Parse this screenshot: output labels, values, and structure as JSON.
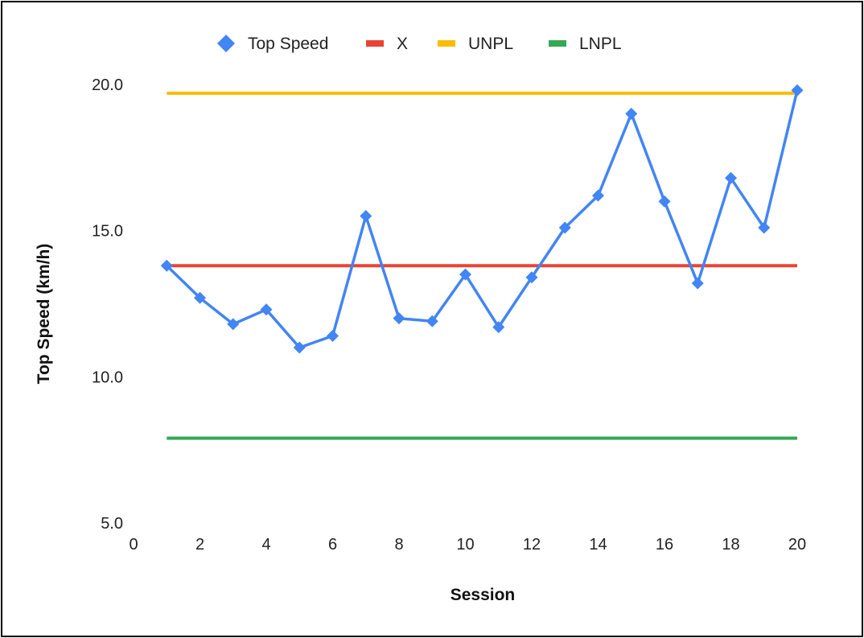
{
  "chart_data": {
    "type": "line",
    "title": "",
    "xlabel": "Session",
    "ylabel": "Top Speed (km/h)",
    "xlim": [
      0,
      20
    ],
    "ylim": [
      5,
      20
    ],
    "x_ticks": [
      "0",
      "2",
      "4",
      "6",
      "8",
      "10",
      "12",
      "14",
      "16",
      "18",
      "20"
    ],
    "y_ticks": [
      "5.0",
      "10.0",
      "15.0",
      "20.0"
    ],
    "grid": false,
    "legend_position": "top",
    "series": [
      {
        "name": "Top Speed",
        "color": "#4285F4",
        "marker": "diamond",
        "x": [
          1,
          2,
          3,
          4,
          5,
          6,
          7,
          8,
          9,
          10,
          11,
          12,
          13,
          14,
          15,
          16,
          17,
          18,
          19,
          20
        ],
        "values": [
          13.8,
          12.7,
          11.8,
          12.3,
          11.0,
          11.4,
          15.5,
          12.0,
          11.9,
          13.5,
          11.7,
          13.4,
          15.1,
          16.2,
          19.0,
          16.0,
          13.2,
          16.8,
          15.1,
          19.8
        ]
      },
      {
        "name": "X",
        "color": "#EA4335",
        "x": [
          1,
          20
        ],
        "values": [
          13.8,
          13.8
        ]
      },
      {
        "name": "UNPL",
        "color": "#FBBC04",
        "x": [
          1,
          20
        ],
        "values": [
          19.7,
          19.7
        ]
      },
      {
        "name": "LNPL",
        "color": "#34A853",
        "x": [
          1,
          20
        ],
        "values": [
          7.9,
          7.9
        ]
      }
    ]
  }
}
